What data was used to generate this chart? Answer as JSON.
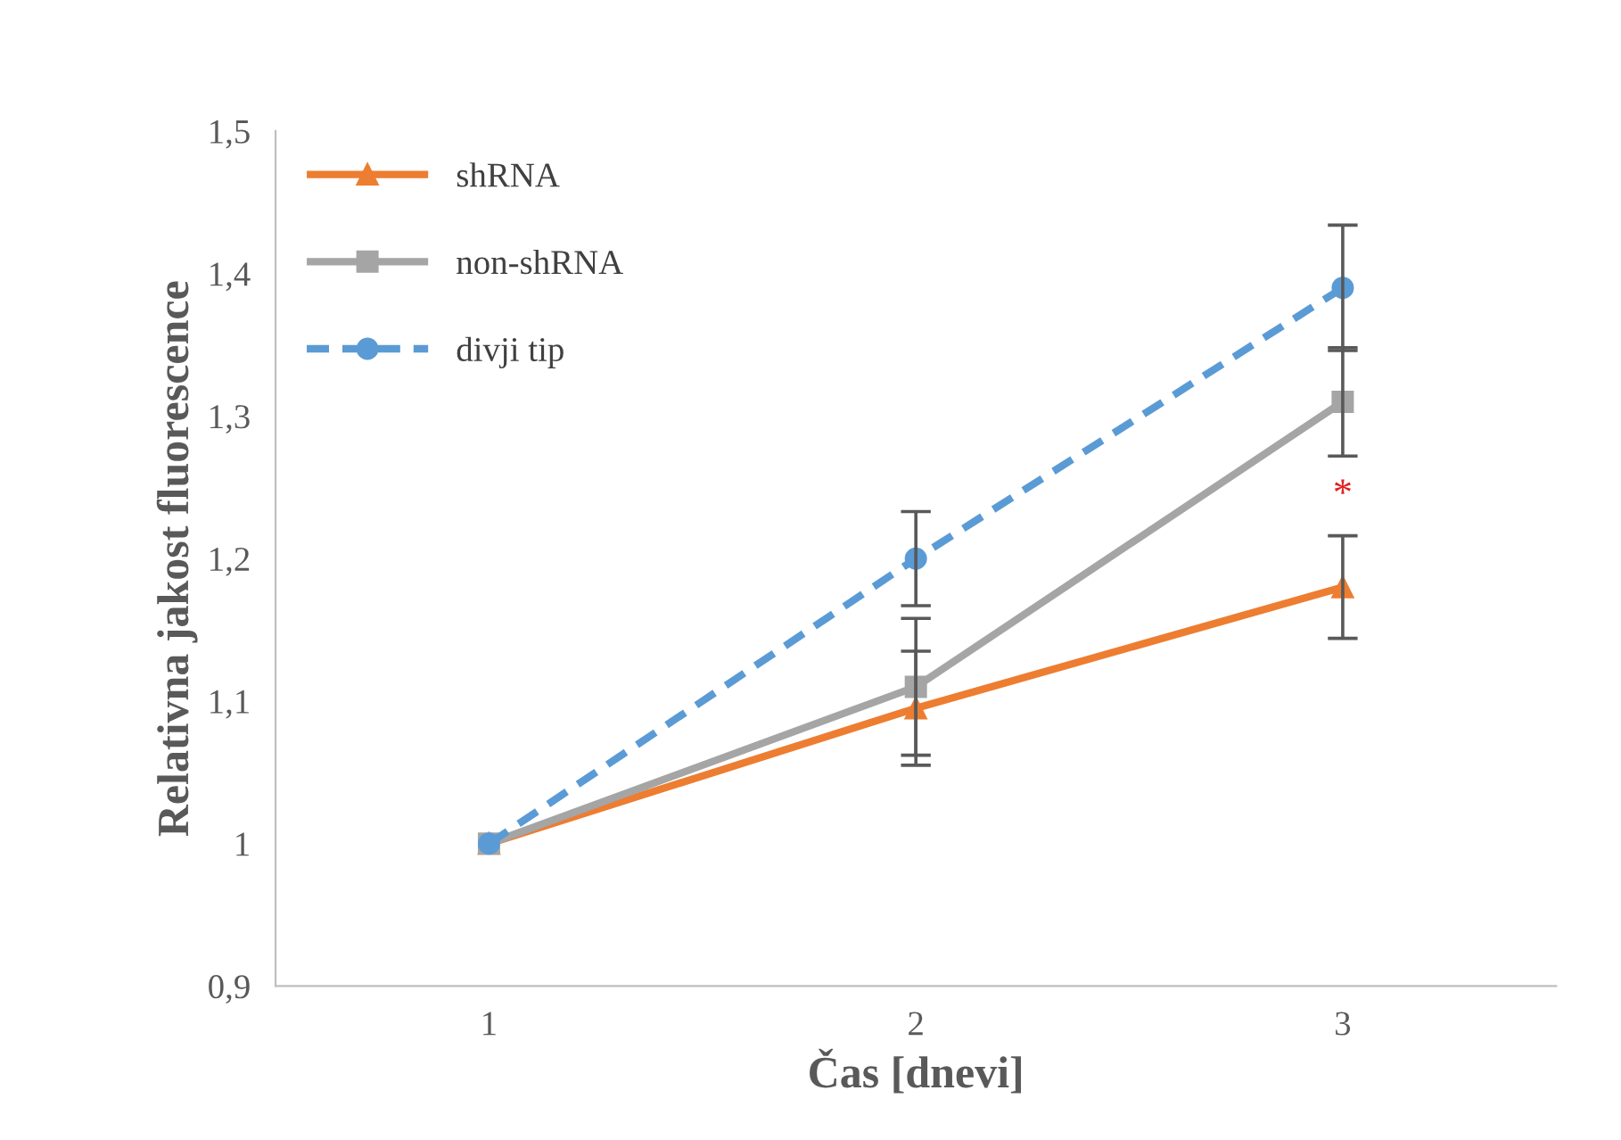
{
  "chart_data": {
    "type": "line",
    "xlabel": "Čas [dnevi]",
    "ylabel": "Relativna jakost fluorescence",
    "x": [
      1,
      2,
      3
    ],
    "xlim": [
      0.5,
      3.5
    ],
    "xticks": [
      1,
      2,
      3
    ],
    "series": [
      {
        "name": "shRNA",
        "color": "#ed7d31",
        "values": [
          1,
          1.095,
          1.18
        ],
        "errors": [
          null,
          0.04,
          0.036
        ],
        "marker": "triangle",
        "line_style": "solid"
      },
      {
        "name": "non-shRNA",
        "color": "#a5a5a5",
        "values": [
          1,
          1.11,
          1.31
        ],
        "errors": [
          null,
          0.048,
          0.038
        ],
        "marker": "square",
        "line_style": "solid"
      },
      {
        "name": "divji tip",
        "color": "#5b9bd5",
        "values": [
          1,
          1.2,
          1.39
        ],
        "errors": [
          null,
          0.033,
          0.044
        ],
        "marker": "circle",
        "line_style": "dashed"
      }
    ],
    "ylim": [
      0.9,
      1.5
    ],
    "yticks": [
      {
        "value": 0.9,
        "label": "0,9"
      },
      1,
      {
        "value": 1.1,
        "label": "1,1"
      },
      {
        "value": 1.2,
        "label": "1,2"
      },
      {
        "value": 1.3,
        "label": "1,3"
      },
      {
        "value": 1.4,
        "label": "1,4"
      },
      {
        "value": 1.5,
        "label": "1,5"
      }
    ],
    "annotations": [
      "*"
    ],
    "legend": "top left",
    "grid": false
  }
}
